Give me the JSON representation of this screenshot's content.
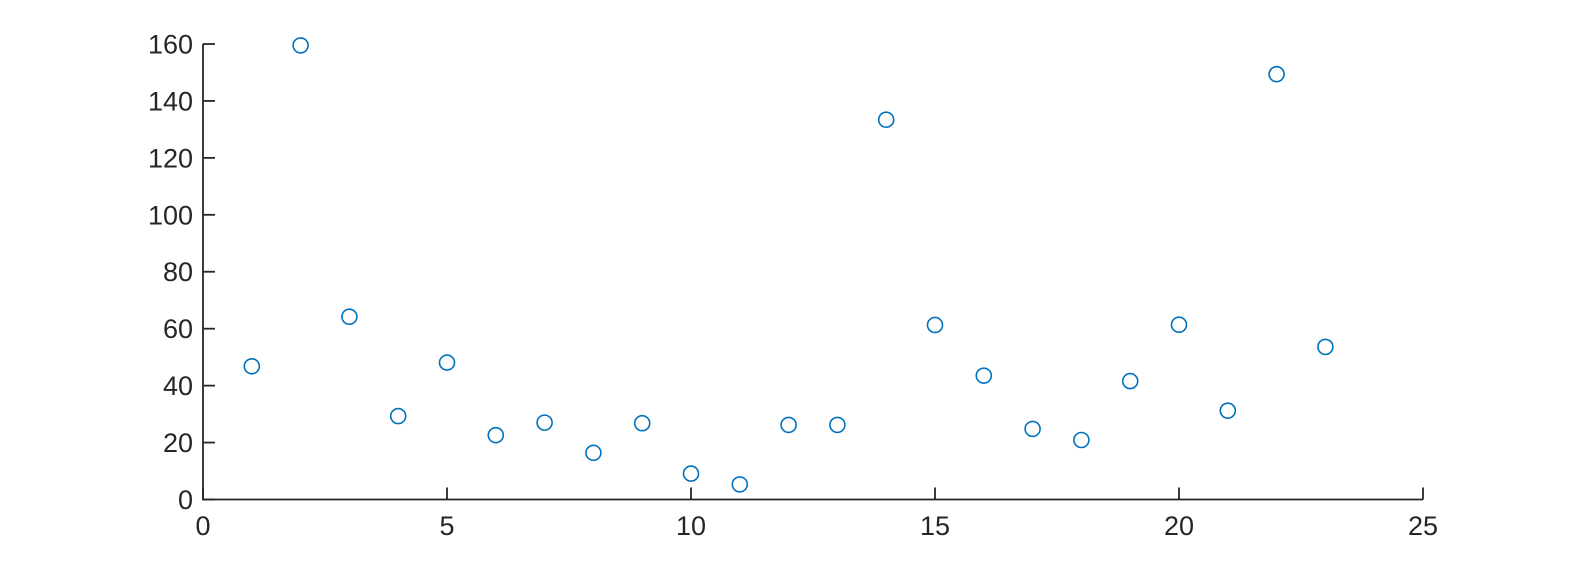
{
  "figure": {
    "background_color": "#ffffff"
  },
  "chart_data": {
    "type": "scatter",
    "title": "",
    "xlabel": "",
    "ylabel": "",
    "x": [
      1,
      2,
      3,
      4,
      5,
      6,
      7,
      8,
      9,
      10,
      11,
      12,
      13,
      14,
      15,
      16,
      17,
      18,
      19,
      20,
      21,
      22,
      23
    ],
    "y": [
      46.8,
      159.5,
      64.2,
      29.3,
      48.1,
      22.6,
      27.0,
      16.4,
      26.8,
      9.1,
      5.3,
      26.2,
      26.2,
      133.4,
      61.3,
      43.5,
      24.8,
      20.9,
      41.6,
      61.4,
      31.2,
      149.4,
      53.6
    ],
    "xlim": [
      0,
      25
    ],
    "ylim": [
      0,
      160
    ],
    "xticks": [
      0,
      5,
      10,
      15,
      20,
      25
    ],
    "yticks": [
      0,
      20,
      40,
      60,
      80,
      100,
      120,
      140,
      160
    ],
    "xtick_labels": [
      "0",
      "5",
      "10",
      "15",
      "20",
      "25"
    ],
    "ytick_labels": [
      "0",
      "20",
      "40",
      "60",
      "80",
      "100",
      "120",
      "140",
      "160"
    ],
    "grid": false,
    "legend": null,
    "marker": {
      "shape": "circle",
      "fill": "none",
      "edge_color": "#0072BD"
    },
    "axis_color": "#262626",
    "tick_label_color": "#262626",
    "tick_direction": "in"
  }
}
